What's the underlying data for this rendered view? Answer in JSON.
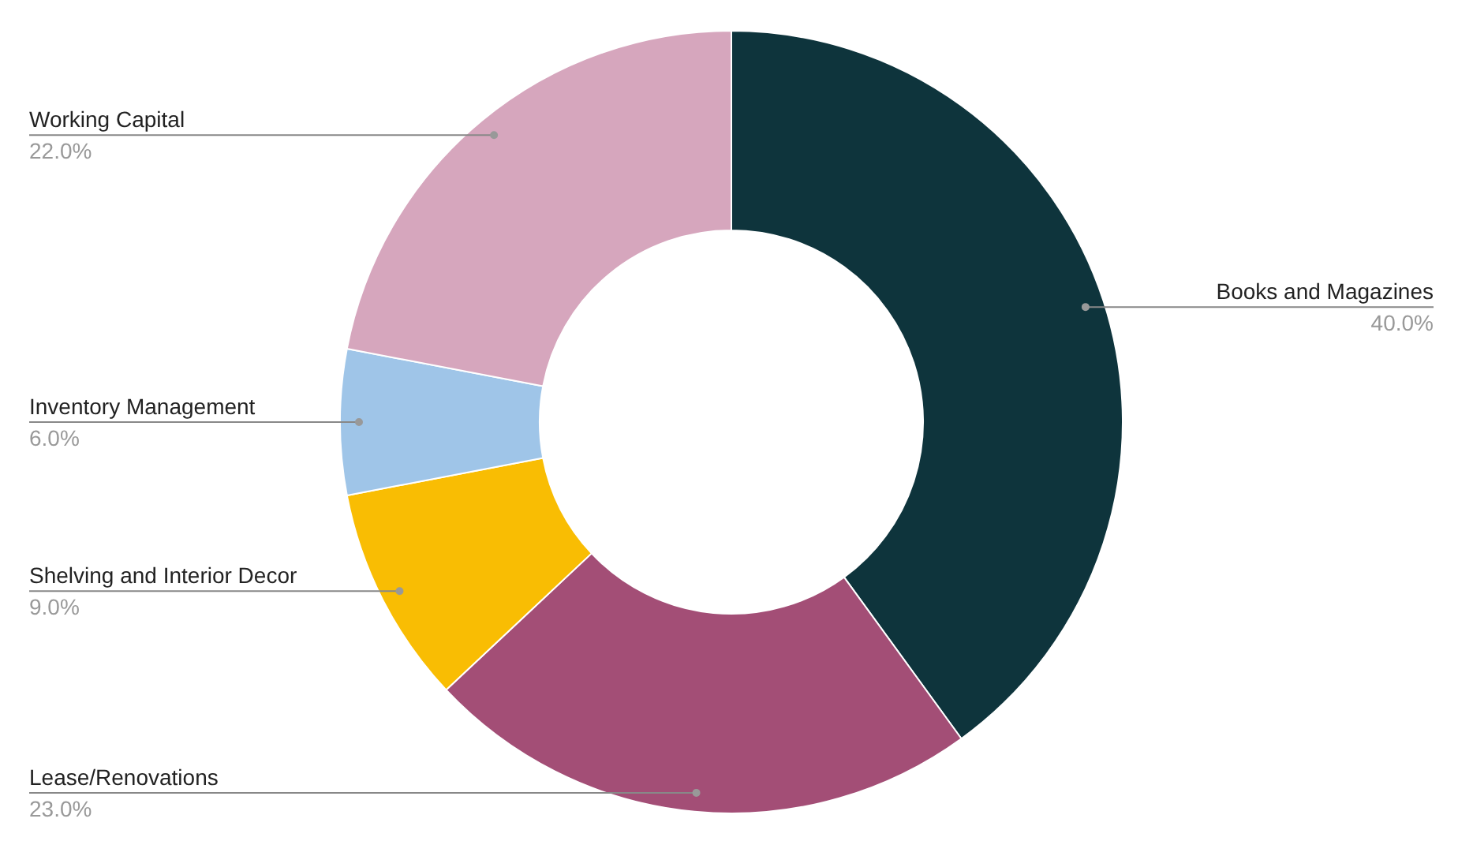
{
  "chart_data": {
    "type": "donut",
    "categories": [
      "Books and Magazines",
      "Lease/Renovations",
      "Shelving and Interior Decor",
      "Inventory Management",
      "Working Capital"
    ],
    "values": [
      40,
      23,
      9,
      6,
      22
    ],
    "colors": [
      "#0e343c",
      "#a34e76",
      "#f9bd03",
      "#9fc5e8",
      "#d6a6bd"
    ],
    "value_labels": [
      "40.0%",
      "23.0%",
      "9.0%",
      "6.0%",
      "22.0%"
    ]
  }
}
